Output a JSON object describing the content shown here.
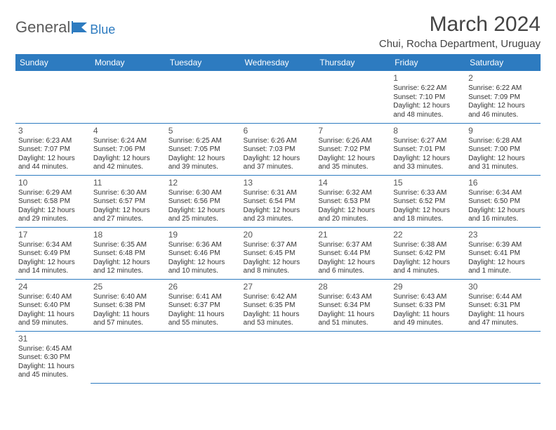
{
  "logo": {
    "part1": "General",
    "part2": "Blue"
  },
  "title": "March 2024",
  "location": "Chui, Rocha Department, Uruguay",
  "colors": {
    "header_bg": "#2d7bc0",
    "header_text": "#ffffff",
    "border": "#2d7bc0",
    "text": "#333333"
  },
  "day_headers": [
    "Sunday",
    "Monday",
    "Tuesday",
    "Wednesday",
    "Thursday",
    "Friday",
    "Saturday"
  ],
  "weeks": [
    [
      null,
      null,
      null,
      null,
      null,
      {
        "n": "1",
        "sr": "Sunrise: 6:22 AM",
        "ss": "Sunset: 7:10 PM",
        "dl": "Daylight: 12 hours and 48 minutes."
      },
      {
        "n": "2",
        "sr": "Sunrise: 6:22 AM",
        "ss": "Sunset: 7:09 PM",
        "dl": "Daylight: 12 hours and 46 minutes."
      }
    ],
    [
      {
        "n": "3",
        "sr": "Sunrise: 6:23 AM",
        "ss": "Sunset: 7:07 PM",
        "dl": "Daylight: 12 hours and 44 minutes."
      },
      {
        "n": "4",
        "sr": "Sunrise: 6:24 AM",
        "ss": "Sunset: 7:06 PM",
        "dl": "Daylight: 12 hours and 42 minutes."
      },
      {
        "n": "5",
        "sr": "Sunrise: 6:25 AM",
        "ss": "Sunset: 7:05 PM",
        "dl": "Daylight: 12 hours and 39 minutes."
      },
      {
        "n": "6",
        "sr": "Sunrise: 6:26 AM",
        "ss": "Sunset: 7:03 PM",
        "dl": "Daylight: 12 hours and 37 minutes."
      },
      {
        "n": "7",
        "sr": "Sunrise: 6:26 AM",
        "ss": "Sunset: 7:02 PM",
        "dl": "Daylight: 12 hours and 35 minutes."
      },
      {
        "n": "8",
        "sr": "Sunrise: 6:27 AM",
        "ss": "Sunset: 7:01 PM",
        "dl": "Daylight: 12 hours and 33 minutes."
      },
      {
        "n": "9",
        "sr": "Sunrise: 6:28 AM",
        "ss": "Sunset: 7:00 PM",
        "dl": "Daylight: 12 hours and 31 minutes."
      }
    ],
    [
      {
        "n": "10",
        "sr": "Sunrise: 6:29 AM",
        "ss": "Sunset: 6:58 PM",
        "dl": "Daylight: 12 hours and 29 minutes."
      },
      {
        "n": "11",
        "sr": "Sunrise: 6:30 AM",
        "ss": "Sunset: 6:57 PM",
        "dl": "Daylight: 12 hours and 27 minutes."
      },
      {
        "n": "12",
        "sr": "Sunrise: 6:30 AM",
        "ss": "Sunset: 6:56 PM",
        "dl": "Daylight: 12 hours and 25 minutes."
      },
      {
        "n": "13",
        "sr": "Sunrise: 6:31 AM",
        "ss": "Sunset: 6:54 PM",
        "dl": "Daylight: 12 hours and 23 minutes."
      },
      {
        "n": "14",
        "sr": "Sunrise: 6:32 AM",
        "ss": "Sunset: 6:53 PM",
        "dl": "Daylight: 12 hours and 20 minutes."
      },
      {
        "n": "15",
        "sr": "Sunrise: 6:33 AM",
        "ss": "Sunset: 6:52 PM",
        "dl": "Daylight: 12 hours and 18 minutes."
      },
      {
        "n": "16",
        "sr": "Sunrise: 6:34 AM",
        "ss": "Sunset: 6:50 PM",
        "dl": "Daylight: 12 hours and 16 minutes."
      }
    ],
    [
      {
        "n": "17",
        "sr": "Sunrise: 6:34 AM",
        "ss": "Sunset: 6:49 PM",
        "dl": "Daylight: 12 hours and 14 minutes."
      },
      {
        "n": "18",
        "sr": "Sunrise: 6:35 AM",
        "ss": "Sunset: 6:48 PM",
        "dl": "Daylight: 12 hours and 12 minutes."
      },
      {
        "n": "19",
        "sr": "Sunrise: 6:36 AM",
        "ss": "Sunset: 6:46 PM",
        "dl": "Daylight: 12 hours and 10 minutes."
      },
      {
        "n": "20",
        "sr": "Sunrise: 6:37 AM",
        "ss": "Sunset: 6:45 PM",
        "dl": "Daylight: 12 hours and 8 minutes."
      },
      {
        "n": "21",
        "sr": "Sunrise: 6:37 AM",
        "ss": "Sunset: 6:44 PM",
        "dl": "Daylight: 12 hours and 6 minutes."
      },
      {
        "n": "22",
        "sr": "Sunrise: 6:38 AM",
        "ss": "Sunset: 6:42 PM",
        "dl": "Daylight: 12 hours and 4 minutes."
      },
      {
        "n": "23",
        "sr": "Sunrise: 6:39 AM",
        "ss": "Sunset: 6:41 PM",
        "dl": "Daylight: 12 hours and 1 minute."
      }
    ],
    [
      {
        "n": "24",
        "sr": "Sunrise: 6:40 AM",
        "ss": "Sunset: 6:40 PM",
        "dl": "Daylight: 11 hours and 59 minutes."
      },
      {
        "n": "25",
        "sr": "Sunrise: 6:40 AM",
        "ss": "Sunset: 6:38 PM",
        "dl": "Daylight: 11 hours and 57 minutes."
      },
      {
        "n": "26",
        "sr": "Sunrise: 6:41 AM",
        "ss": "Sunset: 6:37 PM",
        "dl": "Daylight: 11 hours and 55 minutes."
      },
      {
        "n": "27",
        "sr": "Sunrise: 6:42 AM",
        "ss": "Sunset: 6:35 PM",
        "dl": "Daylight: 11 hours and 53 minutes."
      },
      {
        "n": "28",
        "sr": "Sunrise: 6:43 AM",
        "ss": "Sunset: 6:34 PM",
        "dl": "Daylight: 11 hours and 51 minutes."
      },
      {
        "n": "29",
        "sr": "Sunrise: 6:43 AM",
        "ss": "Sunset: 6:33 PM",
        "dl": "Daylight: 11 hours and 49 minutes."
      },
      {
        "n": "30",
        "sr": "Sunrise: 6:44 AM",
        "ss": "Sunset: 6:31 PM",
        "dl": "Daylight: 11 hours and 47 minutes."
      }
    ],
    [
      {
        "n": "31",
        "sr": "Sunrise: 6:45 AM",
        "ss": "Sunset: 6:30 PM",
        "dl": "Daylight: 11 hours and 45 minutes."
      },
      null,
      null,
      null,
      null,
      null,
      null
    ]
  ]
}
